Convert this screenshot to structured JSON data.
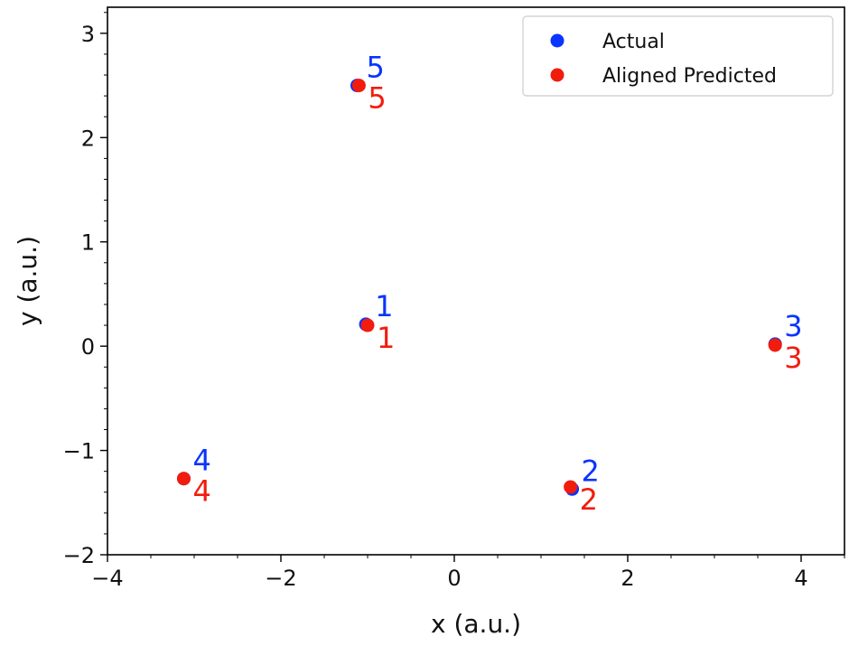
{
  "chart_data": {
    "type": "scatter",
    "title": "",
    "xlabel": "x (a.u.)",
    "ylabel": "y (a.u.)",
    "xlim": [
      -4,
      4.5
    ],
    "ylim": [
      -2,
      3.25
    ],
    "x_ticks": [
      -4,
      -2,
      0,
      2,
      4
    ],
    "y_ticks": [
      -2,
      -1,
      0,
      1,
      2,
      3
    ],
    "x_tick_labels": [
      "−4",
      "−2",
      "0",
      "2",
      "4"
    ],
    "y_tick_labels": [
      "−2",
      "−1",
      "0",
      "1",
      "2",
      "3"
    ],
    "grid": false,
    "legend_position": "top-right",
    "series": [
      {
        "name": "Actual",
        "color": "#0a34ff",
        "points": [
          {
            "id": "1",
            "x": -1.02,
            "y": 0.21
          },
          {
            "id": "2",
            "x": 1.36,
            "y": -1.37
          },
          {
            "id": "3",
            "x": 3.7,
            "y": 0.02
          },
          {
            "id": "4",
            "x": -3.12,
            "y": -1.27
          },
          {
            "id": "5",
            "x": -1.12,
            "y": 2.5
          }
        ]
      },
      {
        "name": "Aligned Predicted",
        "color": "#f21c0c",
        "points": [
          {
            "id": "1",
            "x": -1.0,
            "y": 0.2
          },
          {
            "id": "2",
            "x": 1.34,
            "y": -1.35
          },
          {
            "id": "3",
            "x": 3.7,
            "y": 0.01
          },
          {
            "id": "4",
            "x": -3.12,
            "y": -1.27
          },
          {
            "id": "5",
            "x": -1.1,
            "y": 2.5
          }
        ]
      }
    ]
  }
}
